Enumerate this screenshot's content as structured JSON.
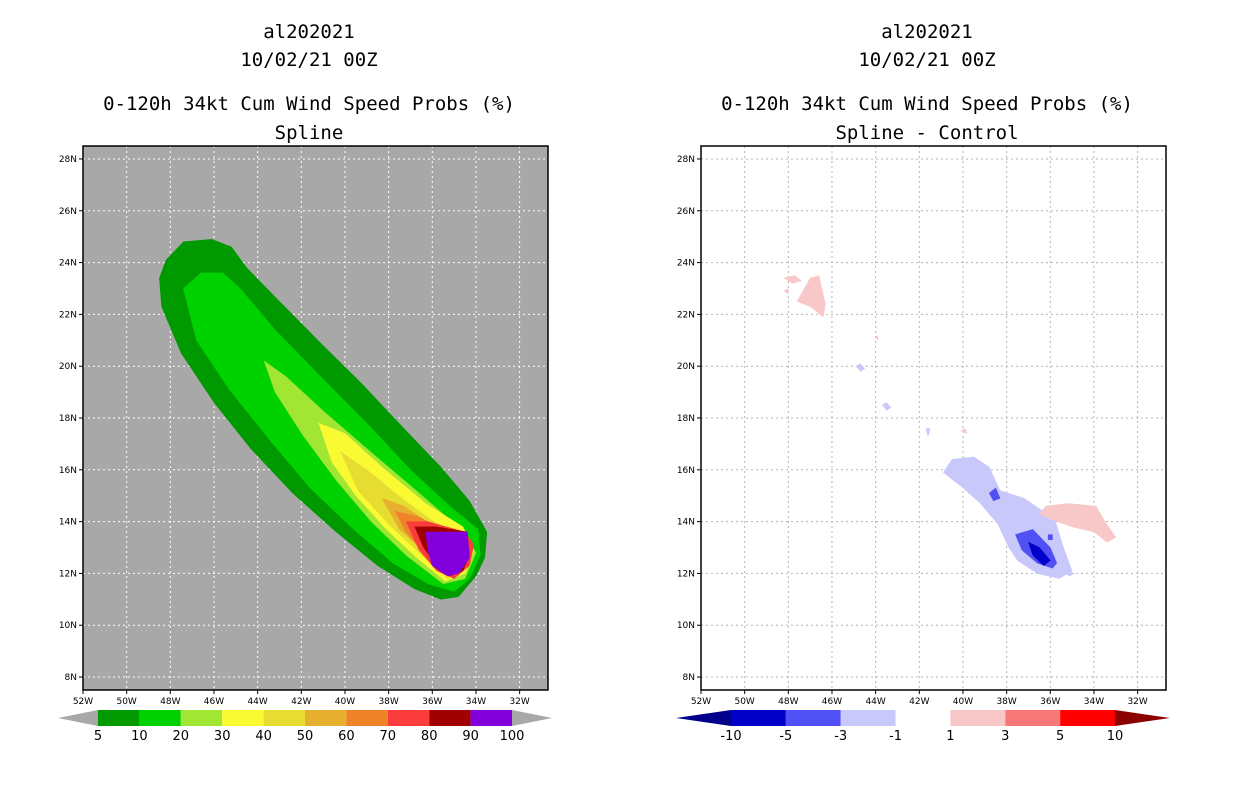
{
  "chart_data": [
    {
      "type": "filled-contour-map",
      "storm_id": "al202021",
      "datetime": "10/02/21 00Z",
      "title": "0-120h 34kt Cum Wind Speed Probs (%)",
      "subtitle": "Spline",
      "x_ticks": [
        "52W",
        "50W",
        "48W",
        "46W",
        "44W",
        "42W",
        "40W",
        "38W",
        "36W",
        "34W",
        "32W"
      ],
      "y_ticks": [
        "28N",
        "26N",
        "24N",
        "22N",
        "20N",
        "18N",
        "16N",
        "14N",
        "12N",
        "10N",
        "8N"
      ],
      "xlim": [
        -52,
        -30.7
      ],
      "ylim": [
        7.5,
        28.5
      ],
      "colorbar": {
        "labels": [
          "5",
          "10",
          "20",
          "30",
          "40",
          "50",
          "60",
          "70",
          "80",
          "90",
          "100"
        ],
        "colors": [
          "#009a00",
          "#00d200",
          "#a0e632",
          "#fafa32",
          "#e6dc32",
          "#e6af2d",
          "#f08228",
          "#fa3c3c",
          "#a00000",
          "#8200dc"
        ],
        "end_colors": [
          "#a8a8a8",
          "#a8a8a8"
        ]
      },
      "contours": [
        {
          "level": 5,
          "color": "#009a00",
          "polygon": [
            [
              -48.2,
              24.1
            ],
            [
              -47.4,
              24.8
            ],
            [
              -46.1,
              24.9
            ],
            [
              -45.2,
              24.6
            ],
            [
              -44.5,
              23.8
            ],
            [
              -43.0,
              22.5
            ],
            [
              -41.0,
              20.8
            ],
            [
              -39.2,
              19.3
            ],
            [
              -37.3,
              17.6
            ],
            [
              -35.6,
              16.1
            ],
            [
              -34.3,
              14.8
            ],
            [
              -33.5,
              13.6
            ],
            [
              -33.6,
              12.6
            ],
            [
              -34.0,
              11.9
            ],
            [
              -34.8,
              11.1
            ],
            [
              -35.6,
              11.0
            ],
            [
              -36.8,
              11.4
            ],
            [
              -38.5,
              12.3
            ],
            [
              -40.4,
              13.6
            ],
            [
              -42.4,
              15.1
            ],
            [
              -44.3,
              16.8
            ],
            [
              -46.0,
              18.6
            ],
            [
              -47.5,
              20.5
            ],
            [
              -48.4,
              22.3
            ],
            [
              -48.5,
              23.4
            ]
          ]
        },
        {
          "level": 10,
          "color": "#00d200",
          "polygon": [
            [
              -47.4,
              23.0
            ],
            [
              -46.6,
              23.6
            ],
            [
              -45.6,
              23.6
            ],
            [
              -44.8,
              23.0
            ],
            [
              -43.2,
              21.4
            ],
            [
              -41.0,
              19.5
            ],
            [
              -39.0,
              17.8
            ],
            [
              -37.0,
              16.0
            ],
            [
              -35.2,
              14.6
            ],
            [
              -33.9,
              13.7
            ],
            [
              -33.8,
              12.7
            ],
            [
              -34.3,
              11.8
            ],
            [
              -35.0,
              11.3
            ],
            [
              -36.2,
              11.6
            ],
            [
              -37.8,
              12.4
            ],
            [
              -39.6,
              13.7
            ],
            [
              -41.6,
              15.3
            ],
            [
              -43.4,
              17.1
            ],
            [
              -45.3,
              19.1
            ],
            [
              -46.8,
              21.0
            ]
          ]
        },
        {
          "level": 20,
          "color": "#a0e632",
          "polygon": [
            [
              -43.7,
              20.2
            ],
            [
              -42.7,
              19.6
            ],
            [
              -40.9,
              18.2
            ],
            [
              -38.7,
              16.6
            ],
            [
              -36.6,
              15.1
            ],
            [
              -34.7,
              13.7
            ],
            [
              -34.0,
              12.8
            ],
            [
              -34.5,
              11.8
            ],
            [
              -35.5,
              11.6
            ],
            [
              -37.2,
              12.7
            ],
            [
              -38.8,
              14.0
            ],
            [
              -40.4,
              15.6
            ],
            [
              -41.9,
              17.3
            ],
            [
              -43.2,
              19.0
            ]
          ]
        },
        {
          "level": 30,
          "color": "#fafa32",
          "polygon": [
            [
              -41.2,
              17.8
            ],
            [
              -40.0,
              17.4
            ],
            [
              -38.3,
              16.1
            ],
            [
              -36.3,
              14.7
            ],
            [
              -34.6,
              13.8
            ],
            [
              -34.1,
              12.9
            ],
            [
              -34.5,
              12.0
            ],
            [
              -35.4,
              11.7
            ],
            [
              -36.7,
              12.6
            ],
            [
              -38.1,
              13.7
            ],
            [
              -39.5,
              15.0
            ],
            [
              -40.6,
              16.3
            ]
          ]
        },
        {
          "level": 40,
          "color": "#e6dc32",
          "polygon": [
            [
              -40.2,
              16.7
            ],
            [
              -39.0,
              16.0
            ],
            [
              -37.4,
              14.9
            ],
            [
              -35.6,
              13.8
            ],
            [
              -34.4,
              13.0
            ],
            [
              -34.5,
              12.2
            ],
            [
              -35.3,
              11.8
            ],
            [
              -36.6,
              12.8
            ],
            [
              -38.0,
              13.9
            ],
            [
              -39.4,
              15.2
            ]
          ]
        },
        {
          "level": 50,
          "color": "#e6af2d",
          "polygon": [
            [
              -38.3,
              14.9
            ],
            [
              -37.3,
              14.6
            ],
            [
              -35.7,
              13.7
            ],
            [
              -34.5,
              13.1
            ],
            [
              -34.5,
              12.4
            ],
            [
              -35.3,
              12.0
            ],
            [
              -36.3,
              12.8
            ],
            [
              -37.5,
              13.7
            ]
          ]
        },
        {
          "level": 60,
          "color": "#f08228",
          "polygon": [
            [
              -37.7,
              14.4
            ],
            [
              -36.7,
              14.2
            ],
            [
              -35.2,
              13.6
            ],
            [
              -34.4,
              13.0
            ],
            [
              -34.6,
              12.2
            ],
            [
              -35.4,
              12.0
            ],
            [
              -36.4,
              12.8
            ],
            [
              -37.2,
              13.6
            ]
          ]
        },
        {
          "level": 70,
          "color": "#fa3c3c",
          "polygon": [
            [
              -37.2,
              14.0
            ],
            [
              -36.2,
              14.0
            ],
            [
              -34.5,
              13.6
            ],
            [
              -34.1,
              13.1
            ],
            [
              -34.3,
              12.3
            ],
            [
              -35.0,
              11.8
            ],
            [
              -35.8,
              12.1
            ],
            [
              -36.6,
              12.9
            ]
          ]
        },
        {
          "level": 80,
          "color": "#a00000",
          "polygon": [
            [
              -36.8,
              13.8
            ],
            [
              -35.8,
              13.8
            ],
            [
              -34.4,
              13.6
            ],
            [
              -34.3,
              12.7
            ],
            [
              -34.6,
              12.1
            ],
            [
              -35.2,
              11.9
            ],
            [
              -35.8,
              12.3
            ],
            [
              -36.4,
              13.0
            ]
          ]
        },
        {
          "level": 90,
          "color": "#8200dc",
          "polygon": [
            [
              -36.3,
              13.6
            ],
            [
              -34.4,
              13.6
            ],
            [
              -34.3,
              12.6
            ],
            [
              -34.8,
              12.0
            ],
            [
              -35.3,
              11.9
            ],
            [
              -36.0,
              12.3
            ],
            [
              -36.2,
              12.9
            ]
          ]
        }
      ]
    },
    {
      "type": "filled-contour-map",
      "storm_id": "al202021",
      "datetime": "10/02/21 00Z",
      "title": "0-120h 34kt Cum Wind Speed Probs (%)",
      "subtitle": "Spline - Control",
      "x_ticks": [
        "52W",
        "50W",
        "48W",
        "46W",
        "44W",
        "42W",
        "40W",
        "38W",
        "36W",
        "34W",
        "32W"
      ],
      "y_ticks": [
        "28N",
        "26N",
        "24N",
        "22N",
        "20N",
        "18N",
        "16N",
        "14N",
        "12N",
        "10N",
        "8N"
      ],
      "xlim": [
        -52,
        -30.7
      ],
      "ylim": [
        7.5,
        28.5
      ],
      "colorbar": {
        "labels": [
          "-10",
          "-5",
          "-3",
          "-1",
          "1",
          "3",
          "5",
          "10"
        ],
        "colors": [
          "#0000c8",
          "#5050f5",
          "#c8c8fa",
          "#ffffff",
          "#f8c8c8",
          "#f87878",
          "#ff0000"
        ],
        "end_colors": [
          "#00008c",
          "#8c0000"
        ]
      },
      "contours": [
        {
          "level": 1,
          "color": "#f8c8c8",
          "polygon": [
            [
              -47.0,
              23.4
            ],
            [
              -46.6,
              23.5
            ],
            [
              -46.3,
              22.4
            ],
            [
              -46.4,
              21.9
            ],
            [
              -47.0,
              22.3
            ],
            [
              -47.6,
              22.5
            ]
          ]
        },
        {
          "level": 1,
          "color": "#f8c8c8",
          "polygon": [
            [
              -48.2,
              23.4
            ],
            [
              -47.7,
              23.5
            ],
            [
              -47.4,
              23.3
            ],
            [
              -47.8,
              23.2
            ]
          ]
        },
        {
          "level": 1,
          "color": "#f8c8c8",
          "polygon": [
            [
              -48.2,
              22.9
            ],
            [
              -48.0,
              23.0
            ],
            [
              -48.0,
              22.8
            ]
          ]
        },
        {
          "level": -1,
          "color": "#c8c8fa",
          "polygon": [
            [
              -40.5,
              16.4
            ],
            [
              -39.5,
              16.5
            ],
            [
              -38.8,
              16.1
            ],
            [
              -38.3,
              15.2
            ],
            [
              -37.2,
              14.9
            ],
            [
              -35.8,
              14.1
            ],
            [
              -35.4,
              13.0
            ],
            [
              -35.0,
              12.1
            ],
            [
              -35.6,
              11.8
            ],
            [
              -36.6,
              12.0
            ],
            [
              -37.5,
              12.5
            ],
            [
              -37.9,
              13.0
            ],
            [
              -38.4,
              13.9
            ],
            [
              -39.2,
              14.7
            ],
            [
              -40.0,
              15.3
            ],
            [
              -40.9,
              15.9
            ]
          ]
        },
        {
          "level": -1,
          "color": "#c8c8fa",
          "polygon": [
            [
              -35.2,
              12.1
            ],
            [
              -34.9,
              12.0
            ],
            [
              -35.1,
              11.9
            ],
            [
              -35.4,
              12.0
            ]
          ]
        },
        {
          "level": -1,
          "color": "#c8c8fa",
          "polygon": [
            [
              -44.9,
              20.0
            ],
            [
              -44.7,
              20.1
            ],
            [
              -44.5,
              19.9
            ],
            [
              -44.7,
              19.8
            ]
          ]
        },
        {
          "level": -1,
          "color": "#c8c8fa",
          "polygon": [
            [
              -43.7,
              18.5
            ],
            [
              -43.5,
              18.6
            ],
            [
              -43.3,
              18.4
            ],
            [
              -43.5,
              18.3
            ]
          ]
        },
        {
          "level": -1,
          "color": "#c8c8fa",
          "polygon": [
            [
              -41.7,
              17.6
            ],
            [
              -41.5,
              17.6
            ],
            [
              -41.6,
              17.3
            ]
          ]
        },
        {
          "level": 1,
          "color": "#f8c8c8",
          "polygon": [
            [
              -36.2,
              14.6
            ],
            [
              -35.2,
              14.7
            ],
            [
              -33.9,
              14.6
            ],
            [
              -33.5,
              14.0
            ],
            [
              -33.0,
              13.4
            ],
            [
              -33.4,
              13.2
            ],
            [
              -34.0,
              13.6
            ],
            [
              -35.0,
              13.8
            ],
            [
              -36.0,
              14.1
            ],
            [
              -36.5,
              14.3
            ]
          ]
        },
        {
          "level": 1,
          "color": "#f8c8c8",
          "polygon": [
            [
              -40.1,
              17.5
            ],
            [
              -39.9,
              17.6
            ],
            [
              -39.8,
              17.4
            ]
          ]
        },
        {
          "level": 1,
          "color": "#f8c8c8",
          "polygon": [
            [
              -44.0,
              21.1
            ],
            [
              -43.9,
              21.2
            ],
            [
              -43.9,
              21.0
            ]
          ]
        },
        {
          "level": -3,
          "color": "#5050f5",
          "polygon": [
            [
              -37.6,
              13.5
            ],
            [
              -36.8,
              13.7
            ],
            [
              -36.0,
              13.0
            ],
            [
              -35.7,
              12.4
            ],
            [
              -35.9,
              12.2
            ],
            [
              -36.6,
              12.4
            ],
            [
              -37.3,
              12.9
            ]
          ]
        },
        {
          "level": -3,
          "color": "#5050f5",
          "polygon": [
            [
              -38.8,
              15.1
            ],
            [
              -38.5,
              15.3
            ],
            [
              -38.3,
              14.9
            ],
            [
              -38.6,
              14.8
            ]
          ]
        },
        {
          "level": -3,
          "color": "#5050f5",
          "polygon": [
            [
              -36.1,
              13.5
            ],
            [
              -35.9,
              13.5
            ],
            [
              -35.9,
              13.3
            ],
            [
              -36.1,
              13.3
            ]
          ]
        },
        {
          "level": -5,
          "color": "#0000c8",
          "polygon": [
            [
              -37.0,
              13.2
            ],
            [
              -36.5,
              13.0
            ],
            [
              -36.0,
              12.5
            ],
            [
              -36.3,
              12.3
            ],
            [
              -36.8,
              12.7
            ]
          ]
        }
      ]
    }
  ]
}
